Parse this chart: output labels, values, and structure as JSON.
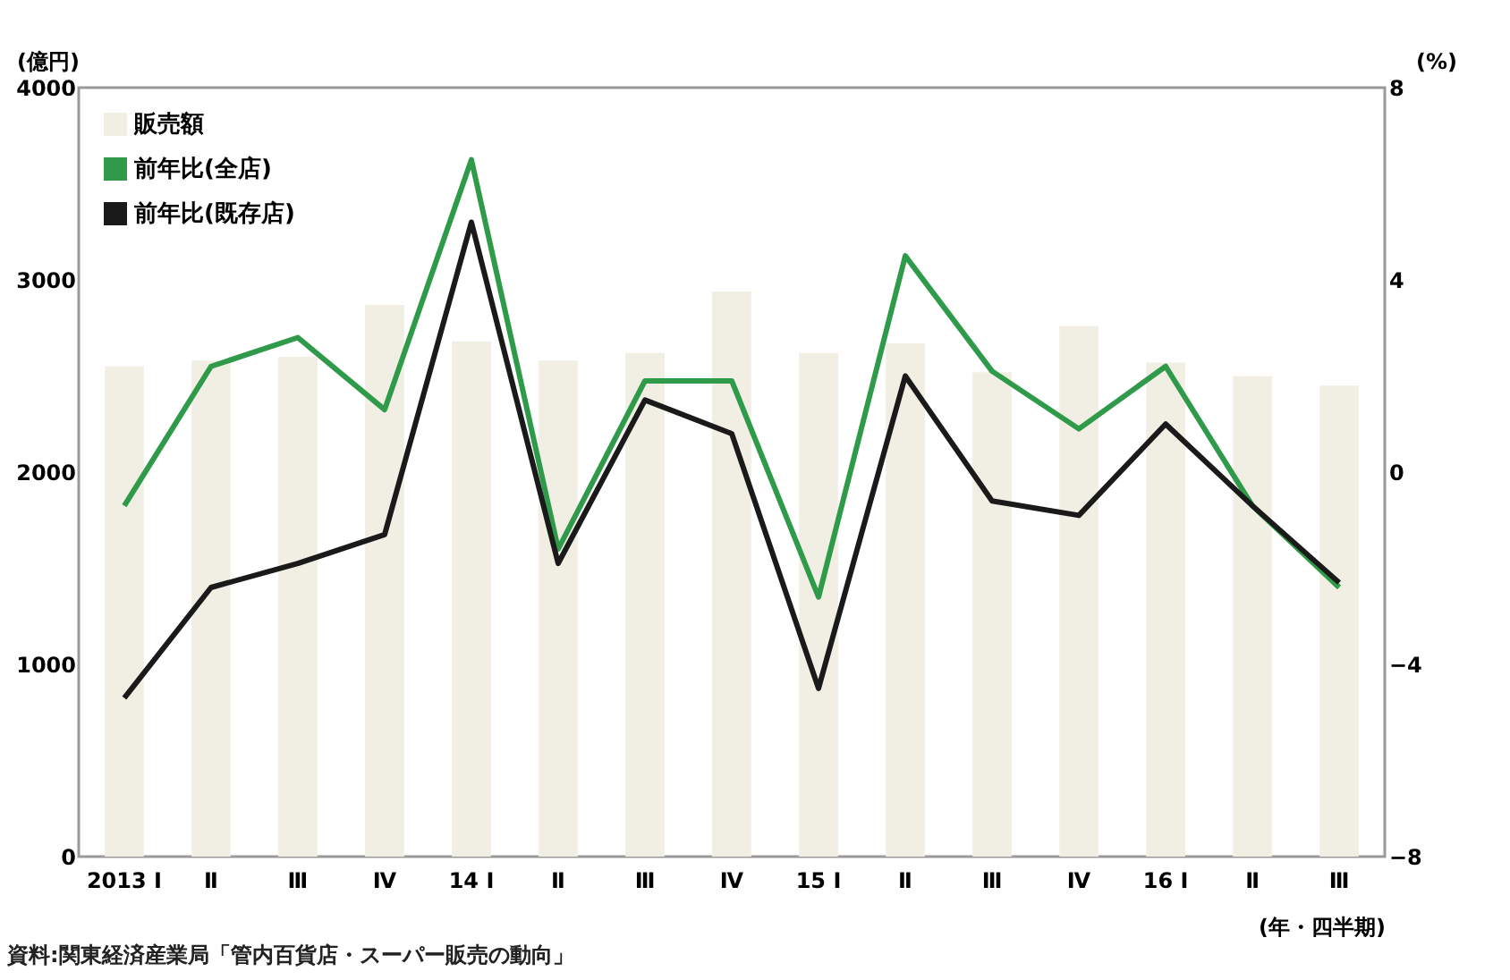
{
  "chart_data": {
    "type": "bar",
    "categories": [
      "2013 Ⅰ",
      "Ⅱ",
      "Ⅲ",
      "Ⅳ",
      "14 Ⅰ",
      "Ⅱ",
      "Ⅲ",
      "Ⅳ",
      "15 Ⅰ",
      "Ⅱ",
      "Ⅲ",
      "Ⅳ",
      "16 Ⅰ",
      "Ⅱ",
      "Ⅲ"
    ],
    "series": [
      {
        "name": "販売額",
        "color": "#f1efe3",
        "values": [
          2550,
          2580,
          2600,
          2870,
          2680,
          2580,
          2620,
          2940,
          2620,
          2670,
          2520,
          2760,
          2570,
          2500,
          2450
        ]
      },
      {
        "name": "前年比(全店)",
        "type": "line",
        "axis": "y2",
        "color": "#2e9a4a",
        "values": [
          -0.7,
          2.2,
          2.8,
          1.3,
          6.5,
          -1.6,
          1.9,
          1.9,
          -2.6,
          4.5,
          2.1,
          0.9,
          2.2,
          -0.7,
          -2.4
        ]
      },
      {
        "name": "前年比(既存店)",
        "type": "line",
        "axis": "y2",
        "color": "#1a1a1a",
        "values": [
          -4.7,
          -2.4,
          -1.9,
          -1.3,
          5.2,
          -1.9,
          1.5,
          0.8,
          -4.5,
          2.0,
          -0.6,
          -0.9,
          1.0,
          -0.7,
          -2.3
        ]
      }
    ],
    "ylabel": "(億円)",
    "y2label": "(%)",
    "xlabel": "(年・四半期)",
    "ylim": [
      0,
      4000
    ],
    "yticks": [
      0,
      1000,
      2000,
      3000,
      4000
    ],
    "y2lim": [
      -8,
      8
    ],
    "y2ticks": [
      -8,
      -4,
      0,
      4,
      8
    ],
    "legend": "top left",
    "grid": false,
    "annotations": [
      "資料:関東経済産業局「管内百貨店・スーパー販売の動向」"
    ]
  }
}
